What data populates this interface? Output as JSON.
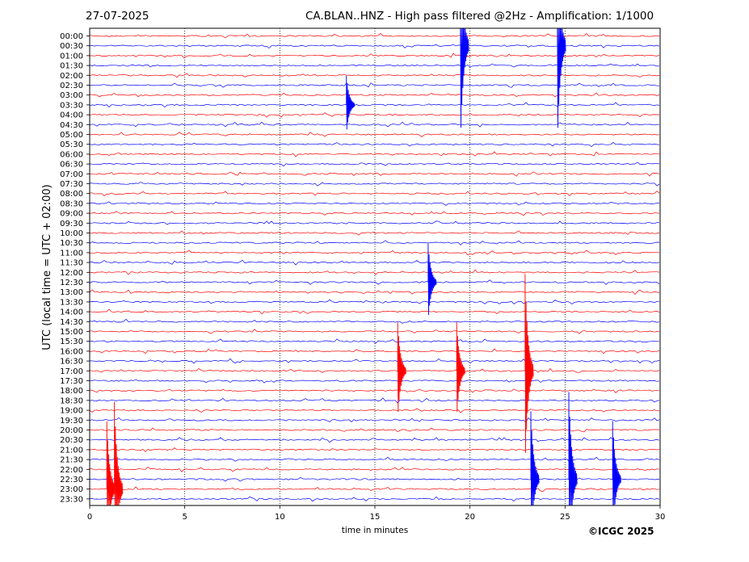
{
  "header": {
    "date": "27-07-2025",
    "title": "CA.BLAN..HNZ - High pass filtered @2Hz - Amplification: 1/1000"
  },
  "footer": {
    "copyright": "©ICGC 2025"
  },
  "colors": {
    "trace_a": "#ff0000",
    "trace_b": "#0000ff"
  },
  "chart_data": {
    "type": "line",
    "title": "CA.BLAN..HNZ - High pass filtered @2Hz - Amplification: 1/1000",
    "xlabel": "time in minutes",
    "ylabel": "UTC (local time = UTC + 02:00)",
    "xlim": [
      0,
      30
    ],
    "x_ticks": [
      "0",
      "5",
      "10",
      "15",
      "20",
      "25",
      "30"
    ],
    "grid": "vertical dotted lines at 5, 10, 15, 20, 25 minutes",
    "row_labels": [
      "00:00",
      "00:30",
      "01:00",
      "01:30",
      "02:00",
      "02:30",
      "03:00",
      "03:30",
      "04:00",
      "04:30",
      "05:00",
      "05:30",
      "06:00",
      "06:30",
      "07:00",
      "07:30",
      "08:00",
      "08:30",
      "09:00",
      "09:30",
      "10:00",
      "10:30",
      "11:00",
      "11:30",
      "12:00",
      "12:30",
      "13:00",
      "13:30",
      "14:00",
      "14:30",
      "15:00",
      "15:30",
      "16:00",
      "16:30",
      "17:00",
      "17:30",
      "18:00",
      "18:30",
      "19:00",
      "19:30",
      "20:00",
      "20:30",
      "21:00",
      "21:30",
      "22:00",
      "22:30",
      "23:00",
      "23:30"
    ],
    "events": [
      {
        "row": "00:30",
        "minute": 19.5,
        "amplitude": 1.0
      },
      {
        "row": "00:30",
        "minute": 24.6,
        "amplitude": 1.0
      },
      {
        "row": "03:30",
        "minute": 13.5,
        "amplitude": 0.3
      },
      {
        "row": "12:30",
        "minute": 17.8,
        "amplitude": 0.4
      },
      {
        "row": "17:00",
        "minute": 16.2,
        "amplitude": 0.5
      },
      {
        "row": "17:00",
        "minute": 19.3,
        "amplitude": 0.5
      },
      {
        "row": "17:00",
        "minute": 22.9,
        "amplitude": 1.0
      },
      {
        "row": "22:30",
        "minute": 23.2,
        "amplitude": 0.7
      },
      {
        "row": "22:30",
        "minute": 25.2,
        "amplitude": 0.9
      },
      {
        "row": "22:30",
        "minute": 27.5,
        "amplitude": 0.6
      },
      {
        "row": "23:00",
        "minute": 0.9,
        "amplitude": 0.7
      },
      {
        "row": "23:00",
        "minute": 1.3,
        "amplitude": 0.9
      }
    ]
  }
}
